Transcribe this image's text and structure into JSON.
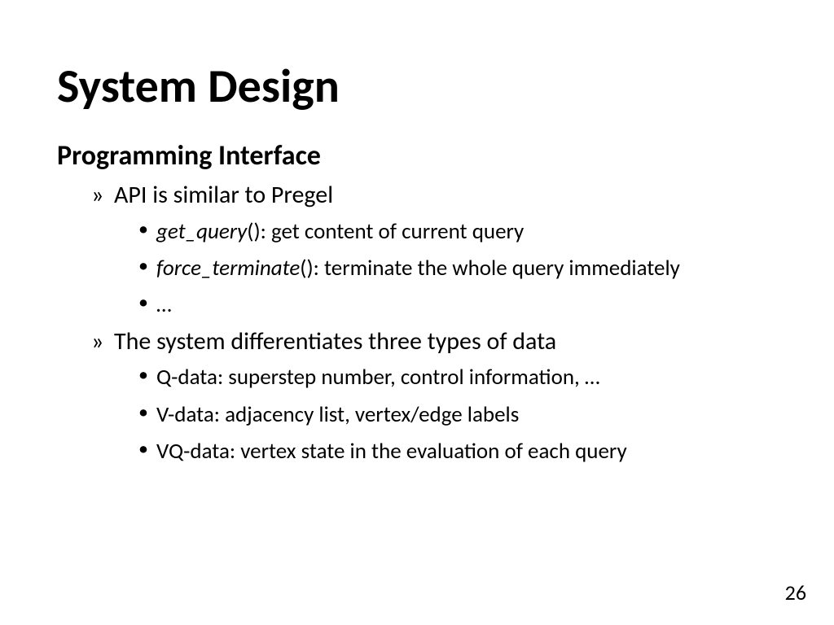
{
  "title": "System Design",
  "subtitle": "Programming Interface",
  "bullet1": "API is similar to Pregel",
  "sub1a_fn": "get_query",
  "sub1a_rest": "(): get content of current query",
  "sub1b_fn": "force_terminate",
  "sub1b_rest": "(): terminate the whole query immediately",
  "sub1c": "…",
  "bullet2": "The system differentiates three types of data",
  "sub2a": "Q-data: superstep number, control information, …",
  "sub2b": "V-data: adjacency list, vertex/edge labels",
  "sub2c": "VQ-data: vertex state in the evaluation of each query",
  "pagenum": "26",
  "colors": {
    "text": "#000000",
    "bg": "#ffffff"
  },
  "fontsizes": {
    "title": 58,
    "subtitle": 34,
    "l1": 30,
    "l2": 27,
    "pagenum": 26
  }
}
